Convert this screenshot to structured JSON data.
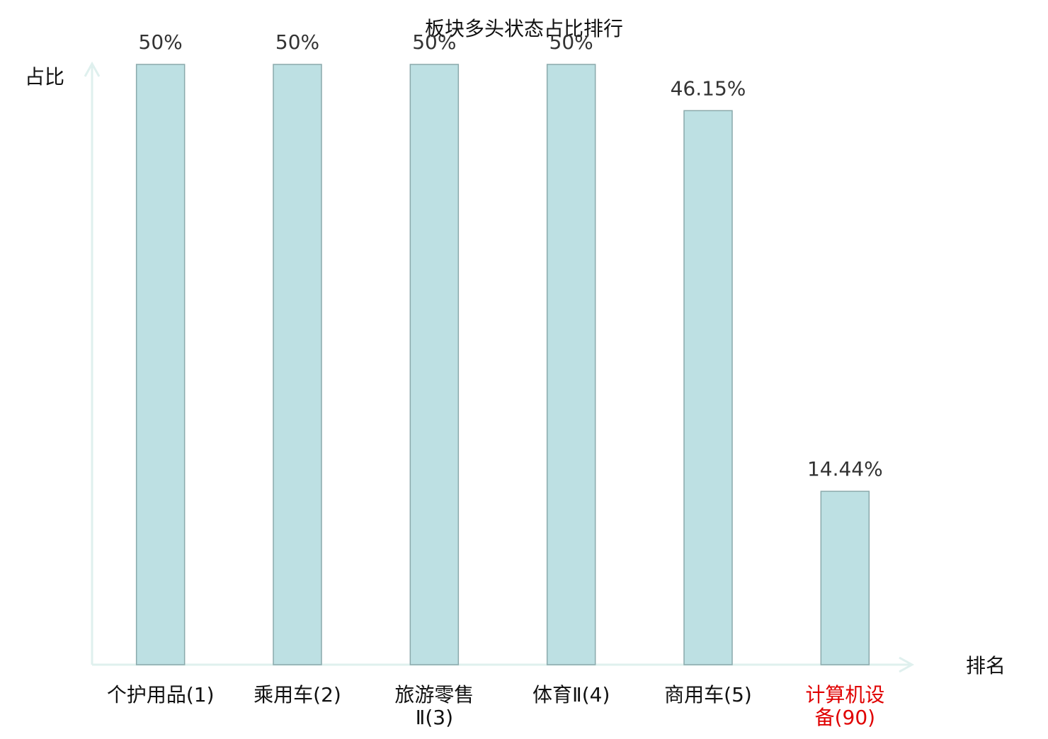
{
  "chart_data": {
    "type": "bar",
    "title": "板块多头状态占比排行",
    "y_label": "占比",
    "x_label": "排名",
    "categories": [
      "个护用品(1)",
      "乘用车(2)",
      "旅游零售Ⅱ(3)",
      "体育Ⅱ(4)",
      "商用车(5)",
      "计算机设备(90)"
    ],
    "category_colors": [
      "#111111",
      "#111111",
      "#111111",
      "#111111",
      "#111111",
      "#e00000"
    ],
    "values": [
      50,
      50,
      50,
      50,
      46.15,
      14.44
    ],
    "value_labels": [
      "50%",
      "50%",
      "50%",
      "50%",
      "46.15%",
      "14.44%"
    ],
    "color": "#bde0e3",
    "edge_color": "#8aa9ab",
    "ylim": [
      0,
      50
    ]
  }
}
